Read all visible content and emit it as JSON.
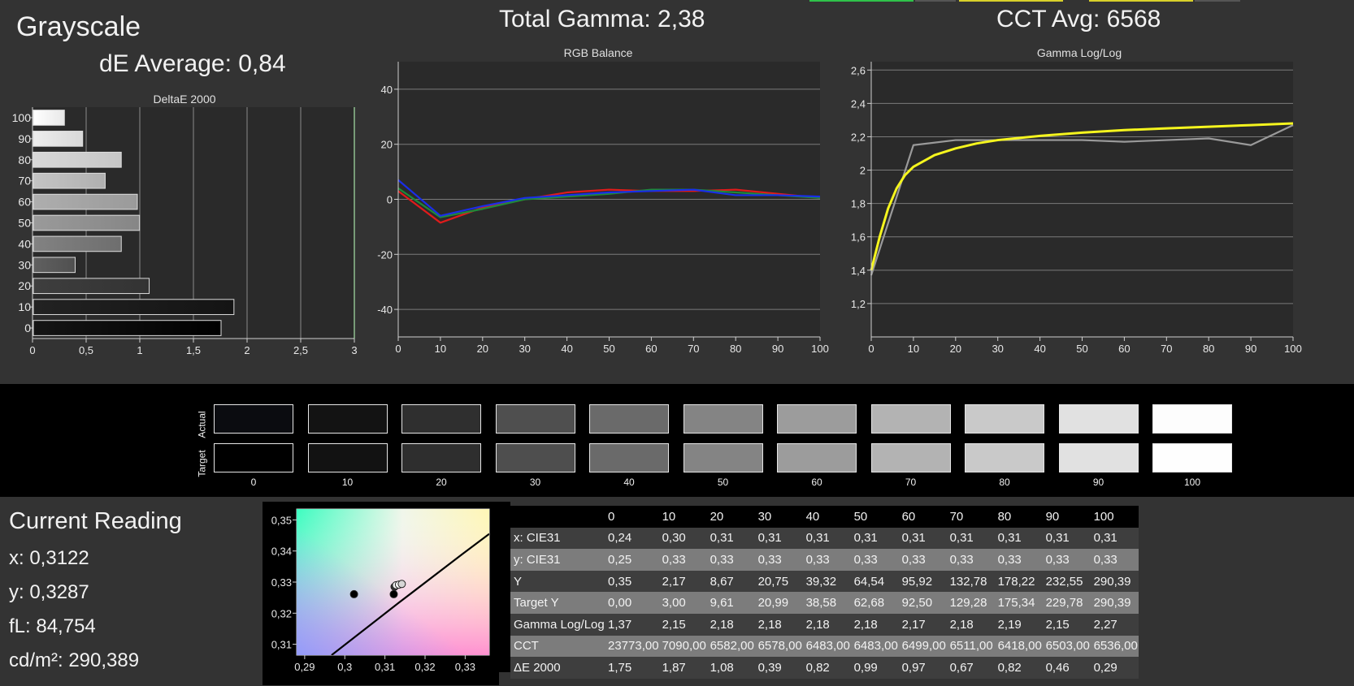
{
  "header": {
    "title": "Grayscale",
    "de_average": "dE Average: 0,84",
    "total_gamma": "Total Gamma: 2,38",
    "cct_avg": "CCT Avg: 6568"
  },
  "current_reading": {
    "title": "Current Reading",
    "x": "x: 0,3122",
    "y": "y: 0,3287",
    "fl": "fL: 84,754",
    "cdm2": "cd/m²: 290,389"
  },
  "colors": {
    "red": "#e01b1b",
    "green": "#1f8a3a",
    "blue": "#1a2ee8",
    "gamma_target": "#f5f51e",
    "gamma_measured": "#9a9a9a",
    "plot_bg": "#2a2a2a",
    "grid": "#7a7a7a"
  },
  "chart_data": [
    {
      "type": "bar",
      "orientation": "horizontal",
      "title": "DeltaE 2000",
      "categories": [
        "100",
        "90",
        "80",
        "70",
        "60",
        "50",
        "40",
        "30",
        "20",
        "10",
        "0"
      ],
      "values": [
        0.29,
        0.46,
        0.82,
        0.67,
        0.97,
        0.99,
        0.82,
        0.39,
        1.08,
        1.87,
        1.75
      ],
      "xlim": [
        0,
        3
      ],
      "xticks": [
        "0",
        "0,5",
        "1",
        "1,5",
        "2",
        "2,5",
        "3"
      ]
    },
    {
      "type": "line",
      "title": "RGB Balance",
      "x": [
        0,
        10,
        20,
        30,
        40,
        50,
        60,
        70,
        80,
        90,
        100
      ],
      "ylim": [
        -50,
        50
      ],
      "yticks": [
        "40",
        "20",
        "0",
        "-20",
        "-40"
      ],
      "xticks": [
        "0",
        "10",
        "20",
        "30",
        "40",
        "50",
        "60",
        "70",
        "80",
        "90",
        "100"
      ],
      "series": [
        {
          "color": "red",
          "values": [
            3,
            -8.5,
            -3,
            0,
            2.5,
            3.5,
            3,
            3,
            3.5,
            2,
            0.5
          ]
        },
        {
          "color": "green",
          "values": [
            4,
            -6.5,
            -3.5,
            0,
            1,
            2,
            3.5,
            3.5,
            2.5,
            1.5,
            0.5
          ]
        },
        {
          "color": "blue",
          "values": [
            7,
            -6,
            -2.5,
            0.5,
            1.5,
            2.5,
            3,
            3.5,
            1.5,
            1.5,
            1
          ]
        }
      ]
    },
    {
      "type": "line",
      "title": "Gamma Log/Log",
      "x": [
        0,
        10,
        20,
        30,
        40,
        50,
        60,
        70,
        80,
        90,
        100
      ],
      "ylim": [
        1,
        2.65
      ],
      "yticks": [
        "2,6",
        "2,4",
        "2,2",
        "2",
        "1,8",
        "1,6",
        "1,4",
        "1,2"
      ],
      "xticks": [
        "0",
        "10",
        "20",
        "30",
        "40",
        "50",
        "60",
        "70",
        "80",
        "90",
        "100"
      ],
      "series": [
        {
          "color": "gamma_measured",
          "values": [
            1.37,
            2.15,
            2.18,
            2.18,
            2.18,
            2.18,
            2.17,
            2.18,
            2.19,
            2.15,
            2.27
          ]
        },
        {
          "color": "gamma_target",
          "x": [
            0,
            2,
            4,
            6,
            8,
            10,
            15,
            20,
            25,
            30,
            40,
            50,
            60,
            70,
            80,
            90,
            100
          ],
          "values": [
            1.4,
            1.6,
            1.77,
            1.89,
            1.97,
            2.02,
            2.09,
            2.13,
            2.16,
            2.18,
            2.205,
            2.225,
            2.24,
            2.25,
            2.26,
            2.27,
            2.28
          ]
        }
      ]
    },
    {
      "type": "scatter",
      "title": "",
      "xlim": [
        0.288,
        0.336
      ],
      "ylim": [
        0.3065,
        0.3535
      ],
      "xticks": [
        "0,29",
        "0,3",
        "0,31",
        "0,32",
        "0,33"
      ],
      "yticks": [
        "0,35",
        "0,34",
        "0,33",
        "0,32",
        "0,31"
      ],
      "points": [
        {
          "x": 0.3023,
          "y": 0.3261,
          "fill": "#000000"
        },
        {
          "x": 0.3122,
          "y": 0.3261,
          "fill": "#000000"
        },
        {
          "x": 0.3124,
          "y": 0.3285,
          "fill": "#333333"
        },
        {
          "x": 0.3128,
          "y": 0.329,
          "fill": "#f0f0f0"
        },
        {
          "x": 0.3135,
          "y": 0.3292,
          "fill": "#ffffff"
        },
        {
          "x": 0.3142,
          "y": 0.3294,
          "fill": "#d6d6d6"
        }
      ],
      "locus": [
        [
          0.2967,
          0.3065
        ],
        [
          0.3133,
          0.3232
        ],
        [
          0.3293,
          0.339
        ],
        [
          0.336,
          0.3455
        ]
      ]
    }
  ],
  "swatches": {
    "actual_label": "Actual",
    "target_label": "Target",
    "levels": [
      "0",
      "10",
      "20",
      "30",
      "40",
      "50",
      "60",
      "70",
      "80",
      "90",
      "100"
    ],
    "actual_colors": [
      "#0b0c10",
      "#131313",
      "#2f2f2f",
      "#4f4f4f",
      "#6a6a6a",
      "#848484",
      "#9c9c9c",
      "#b3b3b3",
      "#c9c9c9",
      "#e1e1e1",
      "#fdfdfd"
    ],
    "target_colors": [
      "#000000",
      "#121212",
      "#2e2e2e",
      "#4e4e4e",
      "#6a6a6a",
      "#848484",
      "#9c9c9c",
      "#b3b3b3",
      "#c9c9c9",
      "#e1e1e1",
      "#fefefe"
    ]
  },
  "table": {
    "columns": [
      "0",
      "10",
      "20",
      "30",
      "40",
      "50",
      "60",
      "70",
      "80",
      "90",
      "100"
    ],
    "rows": [
      {
        "label": "x: CIE31",
        "values": [
          "0,24",
          "0,30",
          "0,31",
          "0,31",
          "0,31",
          "0,31",
          "0,31",
          "0,31",
          "0,31",
          "0,31",
          "0,31"
        ]
      },
      {
        "label": "y: CIE31",
        "values": [
          "0,25",
          "0,33",
          "0,33",
          "0,33",
          "0,33",
          "0,33",
          "0,33",
          "0,33",
          "0,33",
          "0,33",
          "0,33"
        ]
      },
      {
        "label": "Y",
        "values": [
          "0,35",
          "2,17",
          "8,67",
          "20,75",
          "39,32",
          "64,54",
          "95,92",
          "132,78",
          "178,22",
          "232,55",
          "290,39"
        ]
      },
      {
        "label": "Target Y",
        "values": [
          "0,00",
          "3,00",
          "9,61",
          "20,99",
          "38,58",
          "62,68",
          "92,50",
          "129,28",
          "175,34",
          "229,78",
          "290,39"
        ]
      },
      {
        "label": "Gamma Log/Log",
        "values": [
          "1,37",
          "2,15",
          "2,18",
          "2,18",
          "2,18",
          "2,18",
          "2,17",
          "2,18",
          "2,19",
          "2,15",
          "2,27"
        ]
      },
      {
        "label": "CCT",
        "values": [
          "23773,00",
          "7090,00",
          "6582,00",
          "6578,00",
          "6483,00",
          "6483,00",
          "6499,00",
          "6511,00",
          "6418,00",
          "6503,00",
          "6536,00"
        ]
      },
      {
        "label": "ΔE 2000",
        "values": [
          "1,75",
          "1,87",
          "1,08",
          "0,39",
          "0,82",
          "0,99",
          "0,97",
          "0,67",
          "0,82",
          "0,46",
          "0,29"
        ]
      }
    ]
  }
}
